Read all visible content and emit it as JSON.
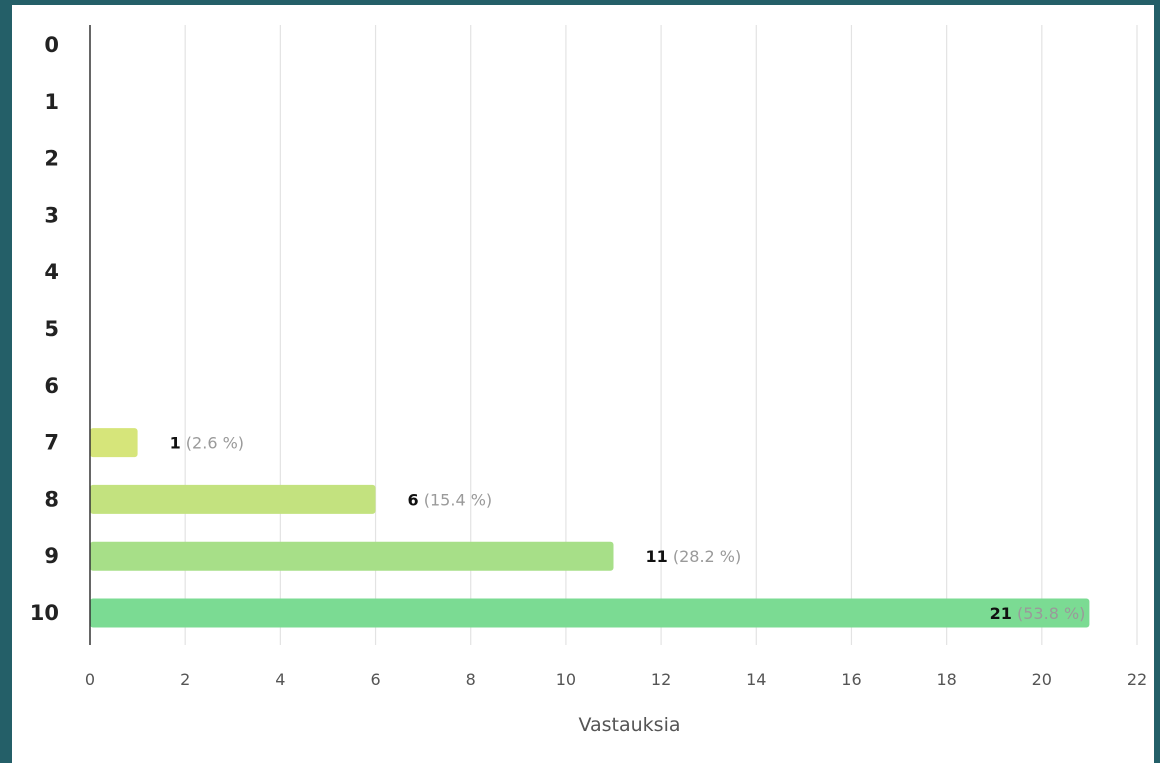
{
  "chart_data": {
    "type": "bar",
    "orientation": "horizontal",
    "categories": [
      "0",
      "1",
      "2",
      "3",
      "4",
      "5",
      "6",
      "7",
      "8",
      "9",
      "10"
    ],
    "values": [
      0,
      0,
      0,
      0,
      0,
      0,
      0,
      1,
      6,
      11,
      21
    ],
    "labels": [
      "",
      "",
      "",
      "",
      "",
      "",
      "",
      "(2.6 %)",
      "(15.4 %)",
      "(28.2 %)",
      "(53.8 %)"
    ],
    "colors": [
      "",
      "",
      "",
      "",
      "",
      "",
      "",
      "#d6e57a",
      "#c3e27f",
      "#a7df88",
      "#7bdb93"
    ],
    "xlabel": "Vastauksia",
    "xlim": [
      0,
      22
    ],
    "xticks": [
      "0",
      "2",
      "4",
      "6",
      "8",
      "10",
      "12",
      "14",
      "16",
      "18",
      "20",
      "22"
    ],
    "grid": true
  }
}
